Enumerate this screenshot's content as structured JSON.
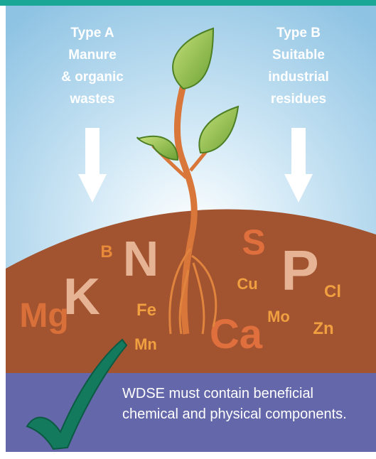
{
  "type_a": {
    "lines": [
      "Type A",
      "Manure",
      "& organic",
      "wastes"
    ]
  },
  "type_b": {
    "lines": [
      "Type B",
      "Suitable",
      "industrial",
      "residues"
    ]
  },
  "elements": [
    "B",
    "N",
    "K",
    "Mg",
    "Fe",
    "Mn",
    "S",
    "Cu",
    "P",
    "Cl",
    "Mo",
    "Zn",
    "Ca"
  ],
  "caption": "WDSE must contain beneficial chemical and physical components."
}
